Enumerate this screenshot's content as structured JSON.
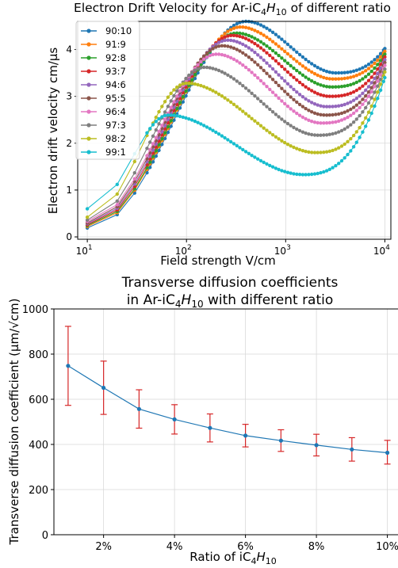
{
  "colors": {
    "series": [
      "#1f77b4",
      "#ff7f0e",
      "#2ca02c",
      "#d62728",
      "#9467bd",
      "#8c564b",
      "#e377c2",
      "#7f7f7f",
      "#bcbd22",
      "#17becf"
    ],
    "errorbar": "#d62728",
    "line": "#1f77b4",
    "grid": "#d9d9d9"
  },
  "chart_data": [
    {
      "type": "line",
      "title_prefix": "Electron Drift Velocity for Ar-iC",
      "title_sub1": "4",
      "title_mid": "H",
      "title_sub2": "10",
      "title_suffix": " of different ratio",
      "xlabel": "Field strength V/cm",
      "ylabel": "Electron drift velocity cm/μs",
      "xscale": "log",
      "xlim": [
        8,
        11500
      ],
      "ylim": [
        -0.05,
        4.6
      ],
      "grid": true,
      "legend": "upper-left",
      "xtick_labels": [
        {
          "base": "10",
          "exp": "1",
          "value": 10
        },
        {
          "base": "10",
          "exp": "2",
          "value": 100
        },
        {
          "base": "10",
          "exp": "3",
          "value": 1000
        },
        {
          "base": "10",
          "exp": "4",
          "value": 10000
        }
      ],
      "yticks": [
        0,
        1,
        2,
        3,
        4
      ],
      "series": [
        {
          "name": "90:10",
          "peak_x": 400,
          "peak_y": 4.6,
          "min_x": 3200,
          "min_y": 3.5,
          "low_y": 0.19,
          "end_y": 4.02
        },
        {
          "name": "91:9",
          "peak_x": 350,
          "peak_y": 4.48,
          "min_x": 3000,
          "min_y": 3.37,
          "low_y": 0.22,
          "end_y": 3.96
        },
        {
          "name": "92:8",
          "peak_x": 320,
          "peak_y": 4.35,
          "min_x": 2900,
          "min_y": 3.2,
          "low_y": 0.24,
          "end_y": 3.9
        },
        {
          "name": "93:7",
          "peak_x": 290,
          "peak_y": 4.3,
          "min_x": 2800,
          "min_y": 3.0,
          "low_y": 0.26,
          "end_y": 3.84
        },
        {
          "name": "94:6",
          "peak_x": 260,
          "peak_y": 4.2,
          "min_x": 2600,
          "min_y": 2.78,
          "low_y": 0.28,
          "end_y": 3.78
        },
        {
          "name": "95:5",
          "peak_x": 230,
          "peak_y": 4.08,
          "min_x": 2500,
          "min_y": 2.6,
          "low_y": 0.3,
          "end_y": 3.72
        },
        {
          "name": "96:4",
          "peak_x": 200,
          "peak_y": 3.9,
          "min_x": 2300,
          "min_y": 2.43,
          "low_y": 0.33,
          "end_y": 3.66
        },
        {
          "name": "97:3",
          "peak_x": 150,
          "peak_y": 3.62,
          "min_x": 2100,
          "min_y": 2.17,
          "low_y": 0.36,
          "end_y": 3.58
        },
        {
          "name": "98:2",
          "peak_x": 100,
          "peak_y": 3.28,
          "min_x": 2000,
          "min_y": 1.8,
          "low_y": 0.42,
          "end_y": 3.52
        },
        {
          "name": "99:1",
          "peak_x": 65,
          "peak_y": 2.6,
          "min_x": 1500,
          "min_y": 1.33,
          "low_y": 0.6,
          "end_y": 3.4
        }
      ]
    },
    {
      "type": "line",
      "title_line1": "Transverse diffusion coefficients",
      "title_line2_prefix": "in Ar-iC",
      "title_sub1": "4",
      "title_mid": "H",
      "title_sub2": "10",
      "title_line2_suffix": " with different ratio",
      "xlabel_prefix": "Ratio of iC",
      "xlabel_sub1": "4",
      "xlabel_mid": "H",
      "xlabel_sub2": "10",
      "ylabel": "Transverse diffusion coefficient (μm/√cm)",
      "xlim": [
        0.6,
        10.3
      ],
      "ylim": [
        0,
        1000
      ],
      "grid": true,
      "xticks": [
        {
          "value": 2,
          "label": "2%"
        },
        {
          "value": 4,
          "label": "4%"
        },
        {
          "value": 6,
          "label": "6%"
        },
        {
          "value": 8,
          "label": "8%"
        },
        {
          "value": 10,
          "label": "10%"
        }
      ],
      "yticks": [
        0,
        200,
        400,
        600,
        800,
        1000
      ],
      "x": [
        1,
        2,
        3,
        4,
        5,
        6,
        7,
        8,
        9,
        10
      ],
      "y": [
        748,
        651,
        557,
        511,
        473,
        439,
        417,
        397,
        378,
        363
      ],
      "err_low": [
        175,
        118,
        85,
        65,
        62,
        50,
        48,
        48,
        52,
        50
      ],
      "err_high": [
        175,
        118,
        85,
        65,
        62,
        50,
        48,
        48,
        52,
        55
      ]
    }
  ]
}
